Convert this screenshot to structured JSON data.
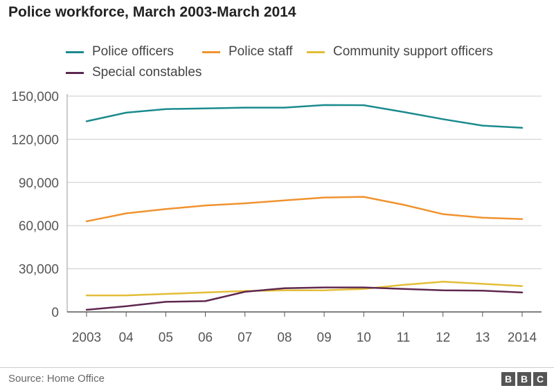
{
  "chart_data": {
    "type": "line",
    "title": "Police workforce, March 2003-March 2014",
    "categories": [
      "2003",
      "04",
      "05",
      "06",
      "07",
      "08",
      "09",
      "10",
      "11",
      "12",
      "13",
      "2014"
    ],
    "ylim": [
      0,
      150000
    ],
    "yticks": [
      0,
      30000,
      60000,
      90000,
      120000,
      150000
    ],
    "ytick_labels": [
      "0",
      "30,000",
      "60,000",
      "90,000",
      "120,000",
      "150,000"
    ],
    "grid": true,
    "legend_position": "top",
    "xlabel": "",
    "ylabel": "",
    "series": [
      {
        "name": "Police officers",
        "color": "#1a8a8e",
        "values": [
          132500,
          138500,
          141000,
          141500,
          142000,
          142000,
          143800,
          143700,
          139000,
          134000,
          129500,
          128000
        ]
      },
      {
        "name": "Police staff",
        "color": "#f0922e",
        "values": [
          63000,
          68500,
          71500,
          74000,
          75500,
          77500,
          79500,
          80000,
          74500,
          68000,
          65500,
          64500
        ]
      },
      {
        "name": "Community support officers",
        "color": "#e3bd35",
        "values": [
          11500,
          11500,
          12500,
          13500,
          14500,
          15000,
          15000,
          16000,
          18800,
          21000,
          19500,
          18000
        ]
      },
      {
        "name": "Special constables",
        "color": "#5e2750",
        "values": [
          1500,
          4000,
          7000,
          7500,
          14000,
          16500,
          17000,
          17000,
          16000,
          15000,
          14800,
          13500
        ]
      }
    ]
  },
  "footer": {
    "source": "Source: Home Office",
    "logo_letters": [
      "B",
      "B",
      "C"
    ]
  }
}
